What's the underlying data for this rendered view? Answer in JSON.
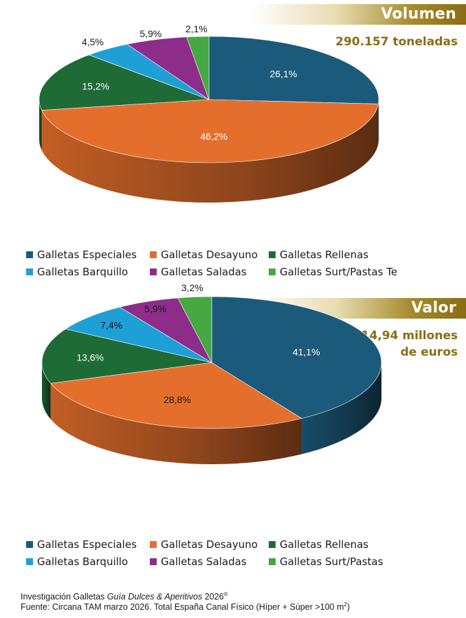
{
  "chart_data": [
    {
      "type": "pie",
      "title": "Volumen",
      "subtitle": "290.157 toneladas",
      "categories": [
        "Galletas Especiales",
        "Galletas Desayuno",
        "Galletas Rellenas",
        "Galletas Barquillo",
        "Galletas Saladas",
        "Galletas Surt/Pastas Te"
      ],
      "values": [
        26.1,
        46.2,
        15.2,
        4.5,
        5.9,
        2.1
      ],
      "value_labels": [
        "26,1%",
        "46,2%",
        "15,2%",
        "4,5%",
        "5,9%",
        "2,1%"
      ],
      "colors": [
        "#1b5a7a",
        "#e46f2c",
        "#1e6b36",
        "#1ea0d6",
        "#8e2c8a",
        "#45a843"
      ],
      "legend_position": "bottom"
    },
    {
      "type": "pie",
      "title": "Valor",
      "subtitle_lines": [
        "1.514,94 millones",
        "de euros"
      ],
      "categories": [
        "Galletas Especiales",
        "Galletas Desayuno",
        "Galletas Rellenas",
        "Galletas Barquillo",
        "Galletas Saladas",
        "Galletas Surt/Pastas"
      ],
      "values": [
        41.1,
        28.8,
        13.6,
        7.4,
        5.9,
        3.2
      ],
      "value_labels": [
        "41,1%",
        "28,8%",
        "13,6%",
        "7,4%",
        "5,9%",
        "3,2%"
      ],
      "colors": [
        "#1b5a7a",
        "#e46f2c",
        "#1e6b36",
        "#1ea0d6",
        "#8e2c8a",
        "#45a843"
      ],
      "legend_position": "bottom"
    }
  ],
  "footer": {
    "line1_prefix": "Investigación Galletas ",
    "line1_italic": "Guía Dulces & Aperitivos",
    "line1_suffix": " 2026",
    "line1_sup": "®",
    "line2_prefix": "Fuente: Circana TAM marzo 2026. Total España Canal Físico (Híper + Súper >100 m",
    "line2_sup": "2",
    "line2_suffix": ")"
  }
}
